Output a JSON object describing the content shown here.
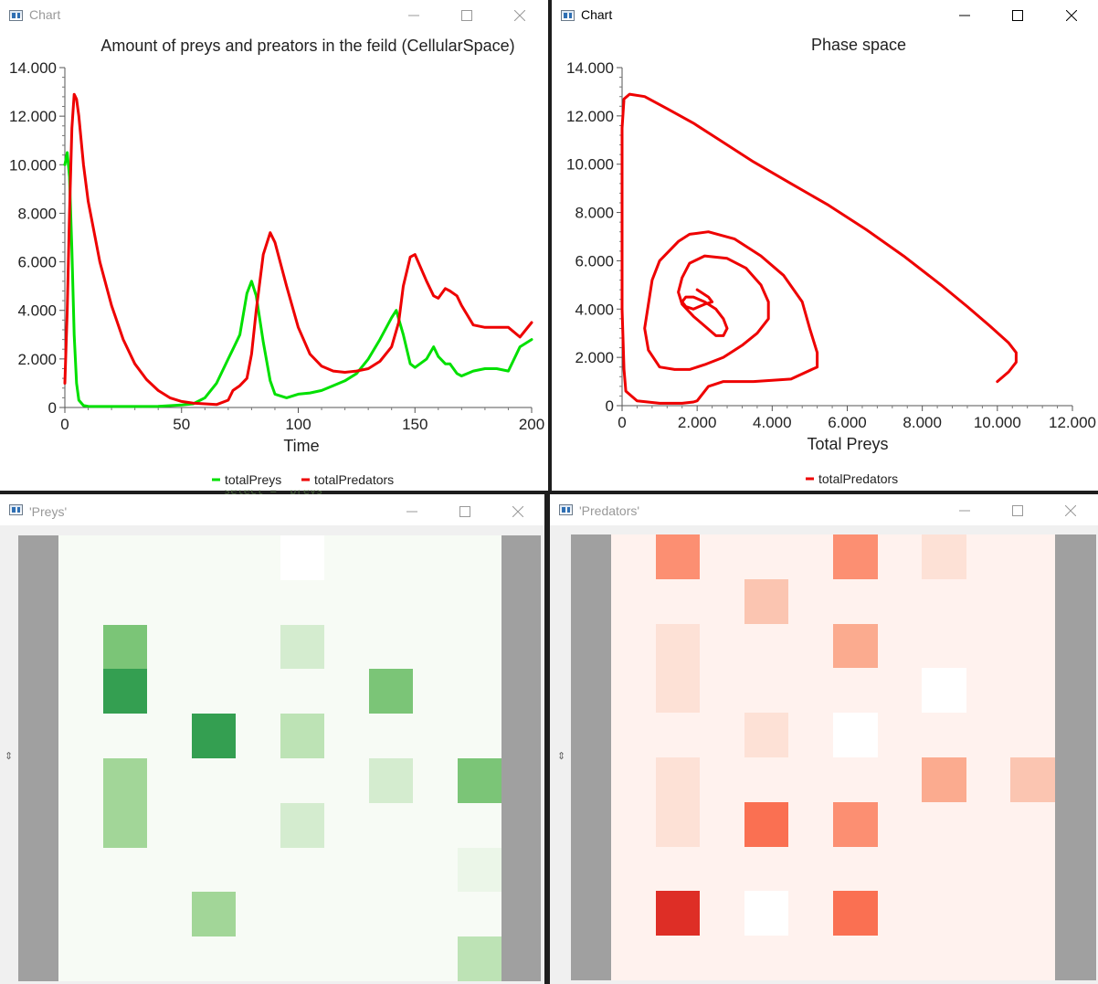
{
  "windows": {
    "chart1": {
      "title": "Chart",
      "active": false
    },
    "chart2": {
      "title": "Chart",
      "active": true
    },
    "preys": {
      "title": "'Preys'"
    },
    "predators": {
      "title": "'Predators'"
    }
  },
  "background_code_text": "select = \"preys\"",
  "icons": {
    "app": "window-app-icon",
    "minimize": "minimize-icon",
    "maximize": "maximize-icon",
    "close": "close-icon",
    "resize": "resize-grip-icon"
  },
  "chart_data": [
    {
      "type": "line",
      "title": "Amount of preys and preators in the feild (CellularSpace)",
      "xlabel": "Time",
      "ylabel": "",
      "xlim": [
        0,
        200
      ],
      "ylim": [
        0,
        14000
      ],
      "xticks": [
        0,
        50,
        100,
        150,
        200
      ],
      "xtick_labels": [
        "0",
        "50",
        "100",
        "150",
        "200"
      ],
      "yticks": [
        0,
        2000,
        4000,
        6000,
        8000,
        10000,
        12000,
        14000
      ],
      "ytick_labels": [
        "0",
        "2.000",
        "4.000",
        "6.000",
        "8.000",
        "10.000",
        "12.000",
        "14.000"
      ],
      "legend_position": "bottom",
      "series": [
        {
          "name": "totalPreys",
          "color": "#00e000",
          "x": [
            0,
            1,
            2,
            3,
            4,
            5,
            6,
            8,
            10,
            15,
            20,
            30,
            40,
            50,
            55,
            60,
            65,
            70,
            72,
            75,
            78,
            80,
            82,
            85,
            88,
            90,
            95,
            100,
            105,
            110,
            115,
            120,
            125,
            130,
            135,
            140,
            142,
            145,
            148,
            150,
            155,
            158,
            160,
            163,
            165,
            168,
            170,
            175,
            180,
            185,
            190,
            195,
            200
          ],
          "y": [
            10000,
            10500,
            9500,
            6500,
            3000,
            1000,
            300,
            80,
            50,
            40,
            40,
            40,
            50,
            100,
            150,
            400,
            1000,
            2000,
            2400,
            3000,
            4700,
            5200,
            4600,
            2700,
            1100,
            550,
            400,
            550,
            600,
            700,
            900,
            1100,
            1400,
            2000,
            2800,
            3700,
            4000,
            3000,
            1800,
            1650,
            2000,
            2500,
            2100,
            1800,
            1800,
            1400,
            1300,
            1500,
            1600,
            1600,
            1500,
            2500,
            2800
          ]
        },
        {
          "name": "totalPredators",
          "color": "#ee0000",
          "x": [
            0,
            1,
            2,
            3,
            4,
            5,
            6,
            8,
            10,
            15,
            20,
            25,
            30,
            35,
            40,
            45,
            50,
            55,
            60,
            65,
            70,
            72,
            75,
            78,
            80,
            82,
            85,
            88,
            90,
            95,
            100,
            105,
            110,
            115,
            120,
            125,
            130,
            135,
            140,
            143,
            145,
            148,
            150,
            155,
            158,
            160,
            163,
            165,
            168,
            170,
            175,
            180,
            185,
            190,
            195,
            200
          ],
          "y": [
            1000,
            4000,
            8000,
            11500,
            12900,
            12700,
            12000,
            10000,
            8500,
            6000,
            4200,
            2800,
            1800,
            1150,
            700,
            400,
            250,
            180,
            150,
            120,
            300,
            700,
            900,
            1200,
            2200,
            4000,
            6300,
            7200,
            6800,
            5000,
            3300,
            2200,
            1700,
            1500,
            1450,
            1500,
            1600,
            1900,
            2500,
            3500,
            5000,
            6200,
            6300,
            5200,
            4600,
            4500,
            4900,
            4800,
            4600,
            4200,
            3400,
            3300,
            3300,
            3300,
            2900,
            3500
          ]
        }
      ]
    },
    {
      "type": "line",
      "title": "Phase space",
      "xlabel": "Total Preys",
      "ylabel": "",
      "xlim": [
        0,
        12000
      ],
      "ylim": [
        0,
        14000
      ],
      "xticks": [
        0,
        2000,
        4000,
        6000,
        8000,
        10000,
        12000
      ],
      "xtick_labels": [
        "0",
        "2.000",
        "4.000",
        "6.000",
        "8.000",
        "10.000",
        "12.000"
      ],
      "yticks": [
        0,
        2000,
        4000,
        6000,
        8000,
        10000,
        12000,
        14000
      ],
      "ytick_labels": [
        "0",
        "2.000",
        "4.000",
        "6.000",
        "8.000",
        "10.000",
        "12.000",
        "14.000"
      ],
      "legend_position": "bottom",
      "series": [
        {
          "name": "totalPredators",
          "color": "#ee0000",
          "x": [
            10000,
            10300,
            10500,
            10500,
            10300,
            9800,
            9200,
            8500,
            7500,
            6500,
            5500,
            4500,
            3500,
            2600,
            1900,
            1200,
            600,
            200,
            50,
            0,
            0,
            0,
            50,
            100,
            400,
            1000,
            1600,
            1900,
            2000,
            2100,
            2300,
            2700,
            3500,
            4500,
            5200,
            5200,
            5000,
            4800,
            4300,
            3700,
            3000,
            2300,
            1800,
            1500,
            1000,
            800,
            700,
            600,
            700,
            1000,
            1400,
            1800,
            2200,
            2700,
            3200,
            3600,
            3900,
            3900,
            3700,
            3300,
            2800,
            2200,
            1800,
            1600,
            1500,
            1600,
            1900,
            2200,
            2500,
            2700,
            2800,
            2700,
            2500,
            2200,
            1900,
            1700,
            1600,
            1700,
            1900,
            2200,
            2400,
            2300,
            2100,
            2000
          ],
          "y": [
            1000,
            1400,
            1800,
            2200,
            2600,
            3300,
            4100,
            5000,
            6200,
            7300,
            8300,
            9200,
            10100,
            11000,
            11700,
            12300,
            12800,
            12900,
            12700,
            11500,
            9000,
            4000,
            1500,
            600,
            200,
            100,
            100,
            150,
            200,
            400,
            800,
            1000,
            1000,
            1100,
            1600,
            2200,
            3200,
            4300,
            5400,
            6200,
            6900,
            7200,
            7100,
            6800,
            6000,
            5200,
            4200,
            3200,
            2300,
            1600,
            1500,
            1500,
            1700,
            2000,
            2500,
            3000,
            3600,
            4300,
            5000,
            5700,
            6100,
            6200,
            5900,
            5300,
            4700,
            4200,
            3700,
            3300,
            2900,
            2900,
            3200,
            3600,
            4000,
            4300,
            4500,
            4500,
            4300,
            4100,
            4000,
            4200,
            4300,
            4500,
            4700,
            4800
          ]
        }
      ]
    }
  ],
  "maps": {
    "preys": {
      "colors": [
        "#f7fbf5",
        "#ffffff",
        "#d4eccf",
        "#bde3b5",
        "#a2d698",
        "#7bc577",
        "#349f51",
        "#ebf6e8"
      ],
      "rows": 10,
      "cols": 10,
      "cells": [
        [
          0,
          0,
          0,
          0,
          0,
          1,
          0,
          0,
          0,
          0
        ],
        [
          0,
          0,
          0,
          0,
          0,
          0,
          0,
          0,
          0,
          0
        ],
        [
          0,
          5,
          0,
          0,
          0,
          2,
          0,
          0,
          0,
          0
        ],
        [
          0,
          6,
          0,
          0,
          0,
          0,
          0,
          5,
          0,
          0
        ],
        [
          0,
          0,
          0,
          6,
          0,
          3,
          0,
          0,
          0,
          0
        ],
        [
          0,
          4,
          0,
          0,
          0,
          0,
          0,
          2,
          0,
          5
        ],
        [
          0,
          4,
          0,
          0,
          0,
          2,
          0,
          0,
          0,
          0
        ],
        [
          0,
          0,
          0,
          0,
          0,
          0,
          0,
          0,
          0,
          7
        ],
        [
          0,
          0,
          0,
          4,
          0,
          0,
          0,
          0,
          0,
          0
        ],
        [
          0,
          0,
          0,
          0,
          0,
          0,
          0,
          0,
          0,
          3
        ]
      ]
    },
    "predators": {
      "colors": [
        "#fff2ee",
        "#fc8f72",
        "#fbc5b1",
        "#fde1d6",
        "#fbab8f",
        "#ffffff",
        "#fa7052",
        "#de2e26"
      ],
      "rows": 10,
      "cols": 10,
      "cells": [
        [
          0,
          1,
          0,
          0,
          0,
          1,
          0,
          3,
          0,
          0
        ],
        [
          0,
          0,
          0,
          2,
          0,
          0,
          0,
          0,
          0,
          0
        ],
        [
          0,
          3,
          0,
          0,
          0,
          4,
          0,
          0,
          0,
          0
        ],
        [
          0,
          3,
          0,
          0,
          0,
          0,
          0,
          5,
          0,
          0
        ],
        [
          0,
          0,
          0,
          3,
          0,
          5,
          0,
          0,
          0,
          0
        ],
        [
          0,
          3,
          0,
          0,
          0,
          0,
          0,
          4,
          0,
          2
        ],
        [
          0,
          3,
          0,
          6,
          0,
          1,
          0,
          0,
          0,
          0
        ],
        [
          0,
          0,
          0,
          0,
          0,
          0,
          0,
          0,
          0,
          0
        ],
        [
          0,
          7,
          0,
          5,
          0,
          6,
          0,
          0,
          0,
          0
        ],
        [
          0,
          0,
          0,
          0,
          0,
          0,
          0,
          0,
          0,
          0
        ]
      ]
    }
  }
}
